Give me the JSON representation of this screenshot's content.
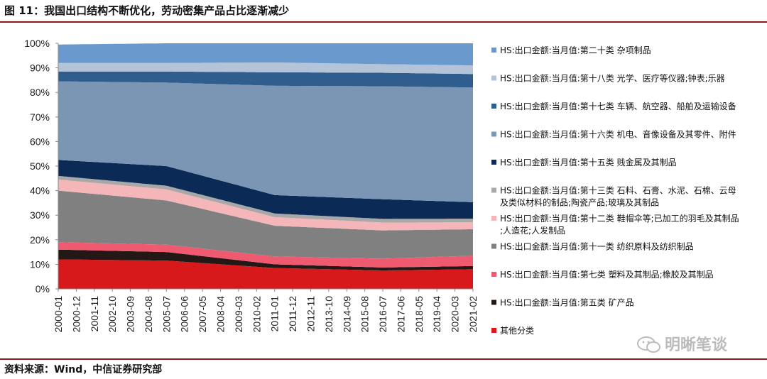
{
  "title": "图 11：我国出口结构不断优化，劳动密集产品占比逐渐减少",
  "source": "资料来源：Wind，中信证券研究部",
  "watermark": "明晰笔谈",
  "chart_data": {
    "type": "area",
    "stacked": true,
    "ylim": [
      0,
      100
    ],
    "y_ticks": [
      "0%",
      "10%",
      "20%",
      "30%",
      "40%",
      "50%",
      "60%",
      "70%",
      "80%",
      "90%",
      "100%"
    ],
    "x_ticks": [
      "2000-01",
      "2000-12",
      "2001-11",
      "2002-10",
      "2003-09",
      "2004-08",
      "2005-07",
      "2006-06",
      "2007-05",
      "2008-04",
      "2009-03",
      "2010-02",
      "2011-01",
      "2011-12",
      "2012-11",
      "2013-10",
      "2014-09",
      "2015-08",
      "2016-07",
      "2017-06",
      "2018-05",
      "2019-04",
      "2020-03",
      "2021-02"
    ],
    "x_anchor_ticks": [
      0,
      6,
      12,
      18,
      23
    ],
    "series": [
      {
        "name": "其他分类",
        "color": "#d7191c",
        "values": [
          12,
          11.5,
          8.5,
          7.5,
          8
        ]
      },
      {
        "name": "HS:出口金额:当月值:第五类 矿产品",
        "color": "#231815",
        "values": [
          4,
          3.5,
          1.5,
          1.2,
          1.3
        ]
      },
      {
        "name": "HS:出口金额:当月值:第七类 塑料及其制品;橡胶及其制品",
        "color": "#f05a70",
        "values": [
          3,
          3,
          3.2,
          3.6,
          4.2
        ]
      },
      {
        "name": "HS:出口金额:当月值:第十一类 纺织原料及纺织制品",
        "color": "#808080",
        "values": [
          21,
          18,
          12.5,
          11.5,
          10.8
        ]
      },
      {
        "name": "HS:出口金额:当月值:第十二类 鞋帽伞等;已加工的羽毛及其制品;人造花;人发制品",
        "color": "#f4b6b8",
        "values": [
          4.5,
          4.5,
          3.5,
          3.2,
          2.8
        ]
      },
      {
        "name": "HS:出口金额:当月值:第十三类 石料、石膏、水泥、石棉、云母及类似材料的制品;陶瓷产品;玻璃及其制品",
        "color": "#a8a8a8",
        "values": [
          1.5,
          1.5,
          1.5,
          1.5,
          1.5
        ]
      },
      {
        "name": "HS:出口金额:当月值:第十五类 贱金属及其制品",
        "color": "#0b2a55",
        "values": [
          6.5,
          8,
          7.5,
          8,
          6.7
        ]
      },
      {
        "name": "HS:出口金额:当月值:第十六类 机电、音像设备及其零件、附件",
        "color": "#7b96b4",
        "values": [
          32,
          34,
          44.5,
          46,
          46.7
        ]
      },
      {
        "name": "HS:出口金额:当月值:第十七类 车辆、航空器、船舶及运输设备",
        "color": "#2f5d8e",
        "values": [
          4,
          4.5,
          5.5,
          5.5,
          5.5
        ]
      },
      {
        "name": "HS:出口金额:当月值:第十八类 光学、医疗等仪器;钟表;乐器",
        "color": "#b4c4d8",
        "values": [
          3.5,
          3.5,
          4,
          3.5,
          3.5
        ]
      },
      {
        "name": "HS:出口金额:当月值:第二十类 杂项制品",
        "color": "#6a9acd",
        "values": [
          7.5,
          8,
          8,
          8.5,
          9
        ]
      }
    ]
  }
}
